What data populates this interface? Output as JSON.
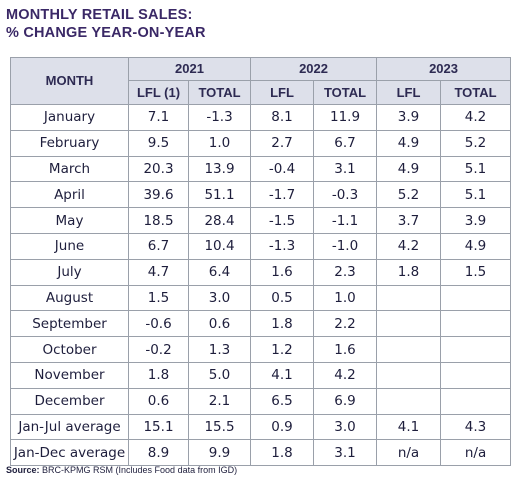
{
  "title": {
    "line1": "MONTHLY RETAIL SALES:",
    "line2": "% CHANGE YEAR-ON-YEAR"
  },
  "table": {
    "month_header": "MONTH",
    "years": [
      "2021",
      "2022",
      "2023"
    ],
    "subheaders": [
      "LFL (1)",
      "TOTAL",
      "LFL",
      "TOTAL",
      "LFL",
      "TOTAL"
    ],
    "rows": [
      {
        "month": "January",
        "values": [
          "7.1",
          "-1.3",
          "8.1",
          "11.9",
          "3.9",
          "4.2"
        ]
      },
      {
        "month": "February",
        "values": [
          "9.5",
          "1.0",
          "2.7",
          "6.7",
          "4.9",
          "5.2"
        ]
      },
      {
        "month": "March",
        "values": [
          "20.3",
          "13.9",
          "-0.4",
          "3.1",
          "4.9",
          "5.1"
        ]
      },
      {
        "month": "April",
        "values": [
          "39.6",
          "51.1",
          "-1.7",
          "-0.3",
          "5.2",
          "5.1"
        ]
      },
      {
        "month": "May",
        "values": [
          "18.5",
          "28.4",
          "-1.5",
          "-1.1",
          "3.7",
          "3.9"
        ]
      },
      {
        "month": "June",
        "values": [
          "6.7",
          "10.4",
          "-1.3",
          "-1.0",
          "4.2",
          "4.9"
        ]
      },
      {
        "month": "July",
        "values": [
          "4.7",
          "6.4",
          "1.6",
          "2.3",
          "1.8",
          "1.5"
        ]
      },
      {
        "month": "August",
        "values": [
          "1.5",
          "3.0",
          "0.5",
          "1.0",
          "",
          ""
        ]
      },
      {
        "month": "September",
        "values": [
          "-0.6",
          "0.6",
          "1.8",
          "2.2",
          "",
          ""
        ]
      },
      {
        "month": "October",
        "values": [
          "-0.2",
          "1.3",
          "1.2",
          "1.6",
          "",
          ""
        ]
      },
      {
        "month": "November",
        "values": [
          "1.8",
          "5.0",
          "4.1",
          "4.2",
          "",
          ""
        ]
      },
      {
        "month": "December",
        "values": [
          "0.6",
          "2.1",
          "6.5",
          "6.9",
          "",
          ""
        ]
      },
      {
        "month": "Jan-Jul average",
        "values": [
          "15.1",
          "15.5",
          "0.9",
          "3.0",
          "4.1",
          "4.3"
        ]
      },
      {
        "month": "Jan-Dec average",
        "values": [
          "8.9",
          "9.9",
          "1.8",
          "3.1",
          "n/a",
          "n/a"
        ]
      }
    ]
  },
  "source": {
    "label": "Source:",
    "text": "BRC-KPMG RSM (Includes Food data from IGD)"
  }
}
